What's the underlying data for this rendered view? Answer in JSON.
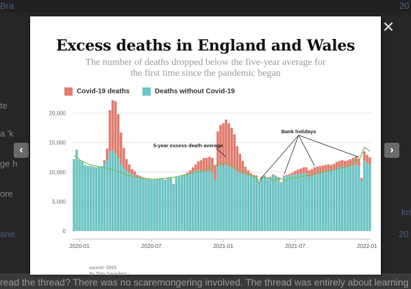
{
  "background": {
    "snippets": [
      "Bra",
      "te",
      "a 'k",
      "ge h",
      "ore",
      "ane",
      "20",
      "km",
      "20"
    ],
    "bottom_text": "read the thread? There was no scaremongering involved. The thread was entirely about learning"
  },
  "lightbox": {
    "close_glyph": "✕",
    "prev_glyph": "‹",
    "next_glyph": "›"
  },
  "chart_data": {
    "type": "bar",
    "title": "Excess deaths in England and Wales",
    "subtitle_line1": "The number of deaths dropped below the five-year average for",
    "subtitle_line2": "the first time since the pandemic began",
    "legend": [
      "Covid-19 deaths",
      "Deaths without Covid-19"
    ],
    "colors": {
      "covid": "#e07b6e",
      "non_covid": "#6cc3c4",
      "average": "#7fb85a"
    },
    "ylim": [
      0,
      22500
    ],
    "y_ticks": [
      0,
      5000,
      10000,
      15000,
      20000
    ],
    "y_tick_labels": [
      "0",
      "5,000",
      "10,000",
      "15,000",
      "20,000"
    ],
    "x_tick_labels": [
      "2020-01",
      "2020-07",
      "2021-01",
      "2021-07",
      "2022-01"
    ],
    "x_tick_weeks": [
      2,
      28,
      54,
      80,
      106
    ],
    "weeks": 108,
    "non_covid": [
      12200,
      13800,
      12000,
      11700,
      11200,
      11000,
      11000,
      10900,
      10800,
      10900,
      11000,
      11500,
      12000,
      13500,
      13600,
      13200,
      12400,
      11400,
      10700,
      10200,
      9900,
      9600,
      9400,
      9100,
      9000,
      8900,
      8800,
      8700,
      8700,
      8700,
      8800,
      8800,
      8900,
      8700,
      8900,
      9000,
      8000,
      9100,
      9200,
      9400,
      9500,
      9600,
      9800,
      10000,
      10200,
      10300,
      10100,
      10200,
      10100,
      10200,
      9900,
      8600,
      10900,
      11200,
      11000,
      11300,
      11000,
      10700,
      10500,
      10100,
      9900,
      9700,
      9600,
      9500,
      9300,
      9200,
      9200,
      8200,
      9100,
      9300,
      9000,
      9100,
      9500,
      9300,
      9000,
      8200,
      9300,
      9300,
      9400,
      9500,
      9600,
      9600,
      9700,
      9800,
      9700,
      9200,
      9300,
      9500,
      9600,
      9800,
      10000,
      10100,
      10200,
      10100,
      10300,
      10600,
      10800,
      10900,
      10800,
      10900,
      11000,
      11100,
      11300,
      11000,
      8500,
      12000,
      11500,
      11200
    ],
    "covid": [
      0,
      0,
      0,
      0,
      0,
      0,
      0,
      0,
      0,
      0,
      0,
      500,
      2000,
      7000,
      8600,
      8800,
      7400,
      5300,
      3400,
      2000,
      1400,
      900,
      700,
      400,
      300,
      200,
      100,
      50,
      0,
      0,
      0,
      0,
      0,
      0,
      0,
      0,
      0,
      0,
      0,
      0,
      100,
      300,
      500,
      800,
      1100,
      1500,
      1900,
      2200,
      2300,
      2400,
      2500,
      2600,
      6000,
      6800,
      7300,
      7600,
      7300,
      6800,
      5900,
      4300,
      3200,
      2200,
      1300,
      800,
      500,
      300,
      200,
      150,
      100,
      100,
      100,
      100,
      100,
      100,
      100,
      100,
      100,
      200,
      300,
      400,
      600,
      800,
      900,
      1000,
      1100,
      1100,
      1200,
      1300,
      1300,
      1200,
      1100,
      1100,
      1100,
      1100,
      1100,
      1100,
      1100,
      1100,
      1100,
      1100,
      1200,
      1300,
      1400,
      1300,
      500,
      1500,
      1400,
      1300
    ],
    "average_line": [
      12700,
      12600,
      12100,
      11800,
      11600,
      11400,
      11200,
      11100,
      11000,
      10900,
      10800,
      10700,
      10600,
      10500,
      10400,
      10300,
      10100,
      9900,
      9700,
      9500,
      9400,
      9300,
      9200,
      9100,
      9000,
      8950,
      8900,
      8850,
      8800,
      8800,
      8800,
      8850,
      8900,
      8950,
      9000,
      9050,
      9100,
      9200,
      9300,
      9400,
      9500,
      9600,
      9700,
      9800,
      9900,
      10000,
      10100,
      10200,
      10400,
      10600,
      10800,
      11100,
      11200,
      11400,
      11500,
      11600,
      11400,
      11100,
      10800,
      10500,
      10200,
      10000,
      9800,
      9600,
      9400,
      9200,
      9100,
      8000,
      9100,
      9000,
      9000,
      9000,
      8500,
      8900,
      8900,
      8900,
      8400,
      8800,
      8900,
      9000,
      9000,
      9100,
      9200,
      9300,
      9400,
      9500,
      9600,
      9700,
      9800,
      9900,
      10000,
      10100,
      10200,
      10300,
      10400,
      10500,
      10600,
      10700,
      10800,
      11000,
      11300,
      11700,
      12200,
      11800,
      13000,
      14200,
      13900,
      13500
    ],
    "annotations": [
      {
        "text": "5-year excess death average",
        "week": 47
      },
      {
        "text": "Bank holidays",
        "targets": [
          67,
          76,
          87,
          103
        ]
      }
    ]
  },
  "source_lines": [
    "source: ONS",
    "By Tom Saunders -"
  ]
}
